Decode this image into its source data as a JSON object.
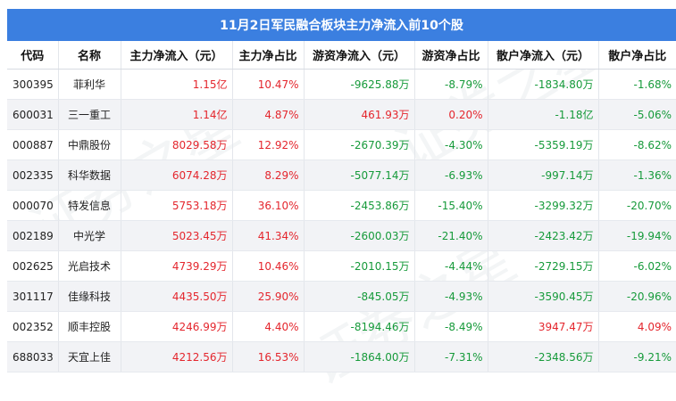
{
  "title": "11月2日军民融合板块主力净流入前10个股",
  "columns": [
    "代码",
    "名称",
    "主力净流入（元）",
    "主力净占比",
    "游资净流入（元）",
    "游资净占比",
    "散户净流入（元）",
    "散户净占比"
  ],
  "rows": [
    {
      "code": "300395",
      "name": "菲利华",
      "main_in": "1.15亿",
      "main_pct": "10.47%",
      "hot_in": "-9625.88万",
      "hot_pct": "-8.79%",
      "retail_in": "-1834.80万",
      "retail_pct": "-1.68%"
    },
    {
      "code": "600031",
      "name": "三一重工",
      "main_in": "1.14亿",
      "main_pct": "4.87%",
      "hot_in": "461.93万",
      "hot_pct": "0.20%",
      "retail_in": "-1.18亿",
      "retail_pct": "-5.06%"
    },
    {
      "code": "000887",
      "name": "中鼎股份",
      "main_in": "8029.58万",
      "main_pct": "12.92%",
      "hot_in": "-2670.39万",
      "hot_pct": "-4.30%",
      "retail_in": "-5359.19万",
      "retail_pct": "-8.62%"
    },
    {
      "code": "002335",
      "name": "科华数据",
      "main_in": "6074.28万",
      "main_pct": "8.29%",
      "hot_in": "-5077.14万",
      "hot_pct": "-6.93%",
      "retail_in": "-997.14万",
      "retail_pct": "-1.36%"
    },
    {
      "code": "000070",
      "name": "特发信息",
      "main_in": "5753.18万",
      "main_pct": "36.10%",
      "hot_in": "-2453.86万",
      "hot_pct": "-15.40%",
      "retail_in": "-3299.32万",
      "retail_pct": "-20.70%"
    },
    {
      "code": "002189",
      "name": "中光学",
      "main_in": "5023.45万",
      "main_pct": "41.34%",
      "hot_in": "-2600.03万",
      "hot_pct": "-21.40%",
      "retail_in": "-2423.42万",
      "retail_pct": "-19.94%"
    },
    {
      "code": "002625",
      "name": "光启技术",
      "main_in": "4739.29万",
      "main_pct": "10.46%",
      "hot_in": "-2010.15万",
      "hot_pct": "-4.44%",
      "retail_in": "-2729.15万",
      "retail_pct": "-6.02%"
    },
    {
      "code": "301117",
      "name": "佳缘科技",
      "main_in": "4435.50万",
      "main_pct": "25.90%",
      "hot_in": "-845.05万",
      "hot_pct": "-4.93%",
      "retail_in": "-3590.45万",
      "retail_pct": "-20.96%"
    },
    {
      "code": "002352",
      "name": "顺丰控股",
      "main_in": "4246.99万",
      "main_pct": "4.40%",
      "hot_in": "-8194.46万",
      "hot_pct": "-8.49%",
      "retail_in": "3947.47万",
      "retail_pct": "4.09%"
    },
    {
      "code": "688033",
      "name": "天宜上佳",
      "main_in": "4212.56万",
      "main_pct": "16.53%",
      "hot_in": "-1864.00万",
      "hot_pct": "-7.31%",
      "retail_in": "-2348.56万",
      "retail_pct": "-9.21%"
    }
  ],
  "colors": {
    "header": "#3b7fe0",
    "positive": "#e4262d",
    "negative": "#169a3a",
    "row_alt": "#f2f3f6"
  }
}
